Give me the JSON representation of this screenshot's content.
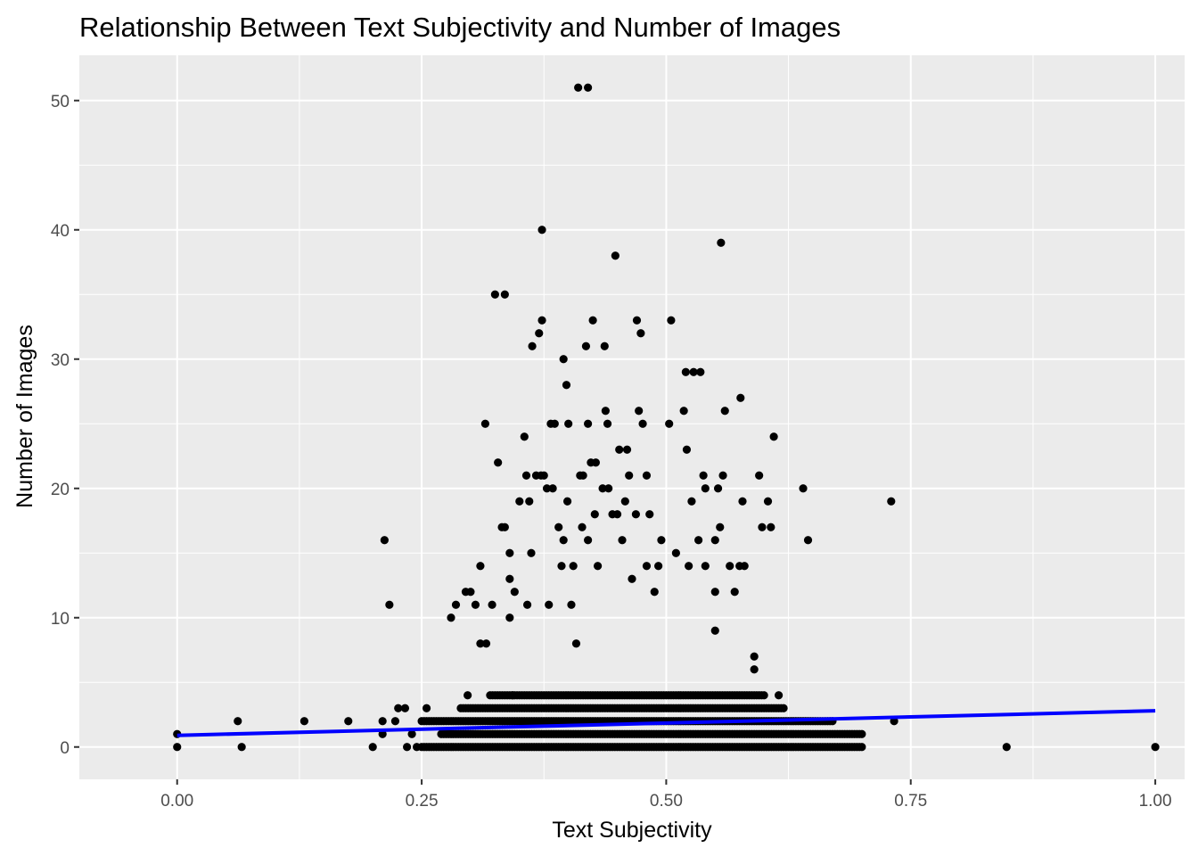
{
  "chart_data": {
    "type": "scatter",
    "title": "Relationship Between Text Subjectivity and Number of Images",
    "xlabel": "Text Subjectivity",
    "ylabel": "Number of Images",
    "xlim": [
      -0.1,
      1.03
    ],
    "ylim": [
      -2.5,
      53.5
    ],
    "x_ticks": [
      {
        "value": 0.0,
        "label": "0.00"
      },
      {
        "value": 0.25,
        "label": "0.25"
      },
      {
        "value": 0.5,
        "label": "0.50"
      },
      {
        "value": 0.75,
        "label": "0.75"
      },
      {
        "value": 1.0,
        "label": "1.00"
      }
    ],
    "y_ticks": [
      {
        "value": 0,
        "label": "0"
      },
      {
        "value": 10,
        "label": "10"
      },
      {
        "value": 20,
        "label": "20"
      },
      {
        "value": 30,
        "label": "30"
      },
      {
        "value": 40,
        "label": "40"
      },
      {
        "value": 50,
        "label": "50"
      }
    ],
    "grid": true,
    "legend": "none",
    "colors": {
      "panel_background": "#ebebeb",
      "grid": "#ffffff",
      "points": "#000000",
      "trend_line": "#0000ff"
    },
    "trend_line": {
      "x": [
        0.0,
        1.0
      ],
      "y": [
        0.9,
        2.8
      ]
    },
    "bands": [
      {
        "y": 0,
        "x_start": 0.25,
        "x_end": 0.7
      },
      {
        "y": 1,
        "x_start": 0.27,
        "x_end": 0.7
      },
      {
        "y": 2,
        "x_start": 0.25,
        "x_end": 0.67
      },
      {
        "y": 3,
        "x_start": 0.29,
        "x_end": 0.62
      },
      {
        "y": 4,
        "x_start": 0.32,
        "x_end": 0.6
      }
    ],
    "points": [
      [
        0.0,
        0
      ],
      [
        0.0,
        1
      ],
      [
        0.062,
        2
      ],
      [
        0.066,
        0
      ],
      [
        0.13,
        2
      ],
      [
        0.175,
        2
      ],
      [
        0.2,
        0
      ],
      [
        0.21,
        1
      ],
      [
        0.212,
        16
      ],
      [
        0.217,
        11
      ],
      [
        0.223,
        2
      ],
      [
        0.226,
        3
      ],
      [
        0.233,
        3
      ],
      [
        0.235,
        0
      ],
      [
        0.21,
        2
      ],
      [
        0.24,
        1
      ],
      [
        0.245,
        0
      ],
      [
        0.255,
        3
      ],
      [
        0.28,
        10
      ],
      [
        0.285,
        11
      ],
      [
        0.295,
        12
      ],
      [
        0.297,
        4
      ],
      [
        0.3,
        12
      ],
      [
        0.305,
        11
      ],
      [
        0.31,
        14
      ],
      [
        0.31,
        8
      ],
      [
        0.315,
        25
      ],
      [
        0.316,
        8
      ],
      [
        0.322,
        11
      ],
      [
        0.328,
        22
      ],
      [
        0.325,
        35
      ],
      [
        0.335,
        35
      ],
      [
        0.332,
        17
      ],
      [
        0.335,
        17
      ],
      [
        0.34,
        15
      ],
      [
        0.34,
        13
      ],
      [
        0.343,
        4
      ],
      [
        0.34,
        10
      ],
      [
        0.345,
        12
      ],
      [
        0.35,
        19
      ],
      [
        0.355,
        24
      ],
      [
        0.357,
        21
      ],
      [
        0.358,
        11
      ],
      [
        0.36,
        19
      ],
      [
        0.362,
        15
      ],
      [
        0.363,
        31
      ],
      [
        0.367,
        21
      ],
      [
        0.37,
        32
      ],
      [
        0.372,
        21
      ],
      [
        0.373,
        40
      ],
      [
        0.373,
        33
      ],
      [
        0.375,
        21
      ],
      [
        0.378,
        20
      ],
      [
        0.38,
        11
      ],
      [
        0.382,
        25
      ],
      [
        0.384,
        20
      ],
      [
        0.386,
        25
      ],
      [
        0.39,
        17
      ],
      [
        0.393,
        14
      ],
      [
        0.395,
        16
      ],
      [
        0.395,
        30
      ],
      [
        0.398,
        28
      ],
      [
        0.399,
        19
      ],
      [
        0.4,
        25
      ],
      [
        0.403,
        11
      ],
      [
        0.405,
        14
      ],
      [
        0.408,
        8
      ],
      [
        0.41,
        51
      ],
      [
        0.412,
        21
      ],
      [
        0.414,
        17
      ],
      [
        0.415,
        21
      ],
      [
        0.418,
        31
      ],
      [
        0.42,
        51
      ],
      [
        0.42,
        25
      ],
      [
        0.42,
        16
      ],
      [
        0.423,
        22
      ],
      [
        0.425,
        33
      ],
      [
        0.427,
        18
      ],
      [
        0.428,
        22
      ],
      [
        0.43,
        14
      ],
      [
        0.435,
        20
      ],
      [
        0.437,
        31
      ],
      [
        0.438,
        26
      ],
      [
        0.44,
        25
      ],
      [
        0.441,
        20
      ],
      [
        0.445,
        18
      ],
      [
        0.448,
        38
      ],
      [
        0.45,
        18
      ],
      [
        0.452,
        23
      ],
      [
        0.455,
        16
      ],
      [
        0.458,
        19
      ],
      [
        0.46,
        23
      ],
      [
        0.462,
        21
      ],
      [
        0.465,
        13
      ],
      [
        0.469,
        18
      ],
      [
        0.47,
        33
      ],
      [
        0.472,
        26
      ],
      [
        0.474,
        32
      ],
      [
        0.476,
        25
      ],
      [
        0.48,
        21
      ],
      [
        0.48,
        14
      ],
      [
        0.483,
        18
      ],
      [
        0.488,
        12
      ],
      [
        0.492,
        14
      ],
      [
        0.495,
        16
      ],
      [
        0.503,
        25
      ],
      [
        0.505,
        33
      ],
      [
        0.51,
        15
      ],
      [
        0.518,
        26
      ],
      [
        0.52,
        29
      ],
      [
        0.521,
        23
      ],
      [
        0.523,
        14
      ],
      [
        0.526,
        19
      ],
      [
        0.528,
        29
      ],
      [
        0.535,
        29
      ],
      [
        0.533,
        16
      ],
      [
        0.538,
        21
      ],
      [
        0.54,
        20
      ],
      [
        0.54,
        14
      ],
      [
        0.55,
        16
      ],
      [
        0.55,
        12
      ],
      [
        0.55,
        9
      ],
      [
        0.553,
        20
      ],
      [
        0.555,
        17
      ],
      [
        0.558,
        21
      ],
      [
        0.556,
        39
      ],
      [
        0.56,
        26
      ],
      [
        0.565,
        14
      ],
      [
        0.57,
        12
      ],
      [
        0.575,
        14
      ],
      [
        0.576,
        27
      ],
      [
        0.578,
        19
      ],
      [
        0.58,
        14
      ],
      [
        0.59,
        7
      ],
      [
        0.59,
        6
      ],
      [
        0.595,
        21
      ],
      [
        0.598,
        17
      ],
      [
        0.604,
        19
      ],
      [
        0.607,
        17
      ],
      [
        0.61,
        24
      ],
      [
        0.615,
        4
      ],
      [
        0.64,
        20
      ],
      [
        0.645,
        16
      ],
      [
        0.73,
        19
      ],
      [
        0.733,
        2
      ],
      [
        0.848,
        0
      ],
      [
        1.0,
        0
      ]
    ]
  }
}
